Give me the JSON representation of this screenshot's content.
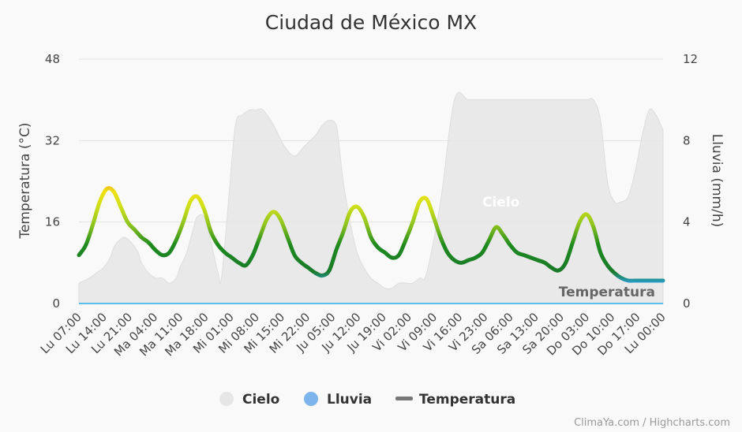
{
  "chart_data": {
    "type": "line",
    "title": "Ciudad de México MX",
    "y_left": {
      "label": "Temperatura (°C)",
      "range": [
        0,
        48
      ],
      "ticks": [
        0,
        16,
        32,
        48
      ]
    },
    "y_right": {
      "label": "Lluvia (mm/h)",
      "range": [
        0,
        12
      ],
      "ticks": [
        0,
        4,
        8,
        12
      ]
    },
    "x_tick_labels": [
      "Lu 07:00",
      "Lu 14:00",
      "Lu 21:00",
      "Ma 04:00",
      "Ma 11:00",
      "Ma 18:00",
      "Mi 01:00",
      "Mi 08:00",
      "Mi 15:00",
      "Mi 22:00",
      "Ju 05:00",
      "Ju 12:00",
      "Ju 19:00",
      "Vi 02:00",
      "Vi 09:00",
      "Vi 16:00",
      "Vi 23:00",
      "Sa 06:00",
      "Sa 13:00",
      "Sa 20:00",
      "Do 03:00",
      "Do 10:00",
      "Do 17:00",
      "Lu 00:00"
    ],
    "x_range": [
      0,
      168
    ],
    "grid": true,
    "series": [
      {
        "name": "Cielo",
        "type": "area",
        "axis": "left",
        "color": "#e6e6e6",
        "x": [
          0,
          3,
          5,
          7,
          9,
          10,
          11,
          13,
          15,
          17,
          18,
          20,
          22,
          24,
          26,
          28,
          29,
          31,
          33,
          34,
          36,
          38,
          40,
          41,
          43,
          45,
          47,
          49,
          51,
          53,
          56,
          59,
          62,
          65,
          68,
          70,
          72,
          74,
          75,
          76,
          78,
          80,
          82,
          84,
          86,
          88,
          90,
          92,
          94,
          96,
          98,
          100,
          104,
          108,
          112,
          116,
          120,
          124,
          128,
          132,
          136,
          140,
          143,
          146,
          148,
          150,
          152,
          154,
          156,
          158,
          160,
          162,
          164,
          166,
          168
        ],
        "y": [
          4,
          5,
          6,
          7,
          9,
          11,
          12,
          13,
          12,
          10,
          8,
          6,
          5,
          5,
          4,
          5,
          7,
          10,
          15,
          17,
          17,
          12,
          6,
          5,
          20,
          35,
          37,
          38,
          38,
          38,
          35,
          31,
          29,
          31,
          33,
          35,
          36,
          35,
          30,
          24,
          16,
          10,
          7,
          5,
          4,
          3,
          3,
          4,
          4,
          4,
          5,
          6,
          20,
          40,
          40,
          40,
          40,
          40,
          40,
          40,
          40,
          40,
          40,
          40,
          40,
          36,
          24,
          20,
          20,
          21,
          26,
          33,
          38,
          37,
          34
        ]
      },
      {
        "name": "Lluvia",
        "type": "line",
        "axis": "right",
        "color": "#7cb5ec",
        "x": [
          0,
          168
        ],
        "y": [
          0,
          0
        ]
      },
      {
        "name": "Temperatura",
        "type": "line",
        "axis": "left",
        "color": "#777777",
        "x": [
          0,
          2,
          4,
          6,
          8,
          10,
          12,
          14,
          16,
          18,
          20,
          22,
          24,
          26,
          28,
          30,
          32,
          34,
          36,
          38,
          40,
          42,
          44,
          46,
          48,
          50,
          52,
          54,
          56,
          58,
          60,
          62,
          64,
          66,
          68,
          70,
          72,
          74,
          76,
          78,
          80,
          82,
          84,
          86,
          88,
          90,
          92,
          94,
          96,
          98,
          100,
          102,
          104,
          106,
          108,
          110,
          112,
          114,
          116,
          118,
          120,
          122,
          124,
          126,
          128,
          130,
          132,
          134,
          136,
          138,
          140,
          142,
          144,
          146,
          148,
          150,
          152,
          154,
          156,
          158,
          160,
          162,
          164,
          166,
          168
        ],
        "y": [
          9.5,
          11.5,
          15.5,
          20,
          22.5,
          22,
          19,
          16,
          14.5,
          13,
          12,
          10.5,
          9.5,
          10,
          12.5,
          16,
          20,
          21,
          18.5,
          14,
          11.5,
          10,
          9,
          8,
          7.5,
          9.5,
          13,
          16.5,
          18,
          16.5,
          13,
          9.5,
          8,
          7,
          6,
          5.5,
          6.5,
          10.5,
          14,
          18,
          19,
          17,
          13,
          11,
          10,
          9,
          9.5,
          12.5,
          16,
          20,
          20.5,
          17,
          13,
          10,
          8.5,
          8,
          8.5,
          9,
          10,
          12.5,
          15,
          13.5,
          11.5,
          10,
          9.5,
          9,
          8.5,
          8,
          7,
          6.5,
          8,
          12,
          16,
          17.5,
          15,
          10,
          7.5,
          6,
          5,
          4.5,
          4.5,
          4.5,
          4.5,
          4.5,
          4.5
        ]
      }
    ],
    "series_labels": {
      "cielo": "Cielo",
      "temperatura": "Temperatura"
    },
    "legend": {
      "position": "bottom",
      "items": [
        {
          "label": "Cielo",
          "color": "#e6e6e6",
          "symbol": "circle"
        },
        {
          "label": "Lluvia",
          "color": "#7cb5ec",
          "symbol": "circle"
        },
        {
          "label": "Temperatura",
          "color": "#777777",
          "symbol": "line"
        }
      ]
    },
    "credits": "ClimaYa.com / Highcharts.com"
  }
}
